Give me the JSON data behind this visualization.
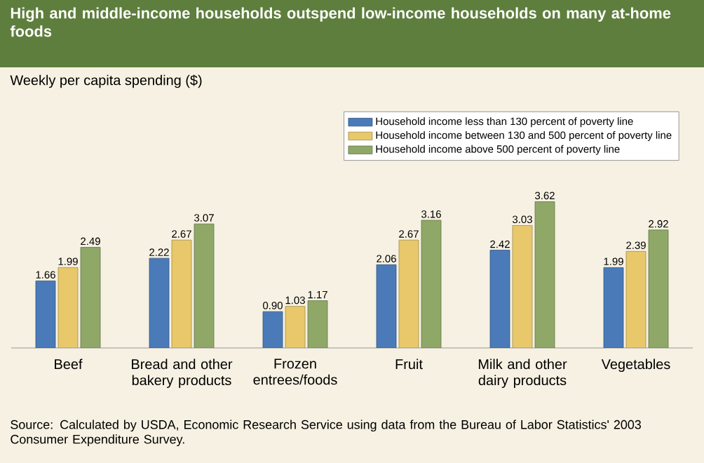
{
  "chart_data": {
    "type": "bar",
    "title": "High and middle-income households outspend low-income households on many at-home foods",
    "categories": [
      "Beef",
      "Bread and other bakery products",
      "Frozen entrees/foods",
      "Fruit",
      "Milk and other dairy products",
      "Vegetables"
    ],
    "series": [
      {
        "name": "Household income less than 130 percent of poverty line",
        "color": "#4a7ab8",
        "values": [
          1.66,
          2.22,
          0.9,
          2.06,
          2.42,
          1.99
        ],
        "value_labels": [
          "1.66",
          "2.22",
          "0.90",
          "2.06",
          "2.42",
          "1.99"
        ]
      },
      {
        "name": "Household income between 130 and 500 percent of poverty line",
        "color": "#e8c86a",
        "values": [
          1.99,
          2.67,
          1.03,
          2.67,
          3.03,
          2.39
        ],
        "value_labels": [
          "1.99",
          "2.67",
          "1.03",
          "2.67",
          "3.03",
          "2.39"
        ]
      },
      {
        "name": "Household income above 500 percent of poverty line",
        "color": "#8fa868",
        "values": [
          2.49,
          3.07,
          1.17,
          3.16,
          3.62,
          2.92
        ],
        "value_labels": [
          "2.49",
          "3.07",
          "1.17",
          "3.16",
          "3.62",
          "2.92"
        ]
      }
    ],
    "legend": "top right",
    "annotations": [
      "Weekly per capita spending ($)",
      "Source:  Calculated by USDA, Economic Research Service using data from the Bureau of Labor Statistics' 2003 Consumer Expenditure Survey."
    ]
  }
}
